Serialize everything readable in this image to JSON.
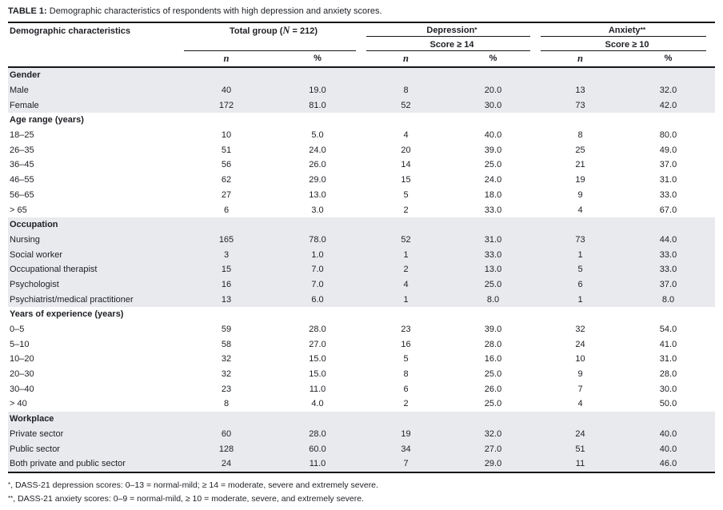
{
  "title": {
    "label": "TABLE 1:",
    "text": " Demographic characteristics of respondents with high depression and anxiety scores."
  },
  "header": {
    "demographic": "Demographic characteristics",
    "total_group": {
      "prefix": "Total group (",
      "n_symbol": "N",
      "suffix": " = 212)"
    },
    "depression": {
      "label": "Depression",
      "marker": "*"
    },
    "anxiety": {
      "label": "Anxiety",
      "marker": "**"
    },
    "depression_score": "Score ≥ 14",
    "anxiety_score": "Score ≥ 10",
    "n_label": "n",
    "pct_label": "%"
  },
  "table": {
    "column_groups": [
      "Total group (N = 212)",
      "Depression* Score ≥ 14",
      "Anxiety** Score ≥ 10"
    ],
    "sections": [
      {
        "label": "Gender",
        "shaded": true,
        "rows": [
          {
            "label": "Male",
            "values": [
              "40",
              "19.0",
              "8",
              "20.0",
              "13",
              "32.0"
            ]
          },
          {
            "label": "Female",
            "values": [
              "172",
              "81.0",
              "52",
              "30.0",
              "73",
              "42.0"
            ]
          }
        ]
      },
      {
        "label": "Age range (years)",
        "shaded": false,
        "rows": [
          {
            "label": "18–25",
            "values": [
              "10",
              "5.0",
              "4",
              "40.0",
              "8",
              "80.0"
            ]
          },
          {
            "label": "26–35",
            "values": [
              "51",
              "24.0",
              "20",
              "39.0",
              "25",
              "49.0"
            ]
          },
          {
            "label": "36–45",
            "values": [
              "56",
              "26.0",
              "14",
              "25.0",
              "21",
              "37.0"
            ]
          },
          {
            "label": "46–55",
            "values": [
              "62",
              "29.0",
              "15",
              "24.0",
              "19",
              "31.0"
            ]
          },
          {
            "label": "56–65",
            "values": [
              "27",
              "13.0",
              "5",
              "18.0",
              "9",
              "33.0"
            ]
          },
          {
            "label": "> 65",
            "values": [
              "6",
              "3.0",
              "2",
              "33.0",
              "4",
              "67.0"
            ]
          }
        ]
      },
      {
        "label": "Occupation",
        "shaded": true,
        "rows": [
          {
            "label": "Nursing",
            "values": [
              "165",
              "78.0",
              "52",
              "31.0",
              "73",
              "44.0"
            ]
          },
          {
            "label": "Social worker",
            "values": [
              "3",
              "1.0",
              "1",
              "33.0",
              "1",
              "33.0"
            ]
          },
          {
            "label": "Occupational therapist",
            "values": [
              "15",
              "7.0",
              "2",
              "13.0",
              "5",
              "33.0"
            ]
          },
          {
            "label": "Psychologist",
            "values": [
              "16",
              "7.0",
              "4",
              "25.0",
              "6",
              "37.0"
            ]
          },
          {
            "label": "Psychiatrist/medical practitioner",
            "values": [
              "13",
              "6.0",
              "1",
              "8.0",
              "1",
              "8.0"
            ]
          }
        ]
      },
      {
        "label": "Years of experience (years)",
        "shaded": false,
        "rows": [
          {
            "label": "0–5",
            "values": [
              "59",
              "28.0",
              "23",
              "39.0",
              "32",
              "54.0"
            ]
          },
          {
            "label": "5–10",
            "values": [
              "58",
              "27.0",
              "16",
              "28.0",
              "24",
              "41.0"
            ]
          },
          {
            "label": "10–20",
            "values": [
              "32",
              "15.0",
              "5",
              "16.0",
              "10",
              "31.0"
            ]
          },
          {
            "label": "20–30",
            "values": [
              "32",
              "15.0",
              "8",
              "25.0",
              "9",
              "28.0"
            ]
          },
          {
            "label": "30–40",
            "values": [
              "23",
              "11.0",
              "6",
              "26.0",
              "7",
              "30.0"
            ]
          },
          {
            "label": "> 40",
            "values": [
              "8",
              "4.0",
              "2",
              "25.0",
              "4",
              "50.0"
            ]
          }
        ]
      },
      {
        "label": "Workplace",
        "shaded": true,
        "rows": [
          {
            "label": "Private sector",
            "values": [
              "60",
              "28.0",
              "19",
              "32.0",
              "24",
              "40.0"
            ]
          },
          {
            "label": "Public sector",
            "values": [
              "128",
              "60.0",
              "34",
              "27.0",
              "51",
              "40.0"
            ]
          },
          {
            "label": "Both private and public sector",
            "values": [
              "24",
              "11.0",
              "7",
              "29.0",
              "11",
              "46.0"
            ]
          }
        ]
      }
    ]
  },
  "footnotes": [
    {
      "marker": "*",
      "text": ", DASS-21 depression scores: 0–13 = normal-mild; ≥ 14 = moderate, severe and extremely severe."
    },
    {
      "marker": "**",
      "text": ", DASS-21 anxiety scores: 0–9 = normal-mild, ≥ 10 = moderate, severe, and extremely severe."
    }
  ],
  "colors": {
    "shaded_row": "#e9eaee",
    "text": "#1d1f24",
    "rule": "#15171a"
  }
}
